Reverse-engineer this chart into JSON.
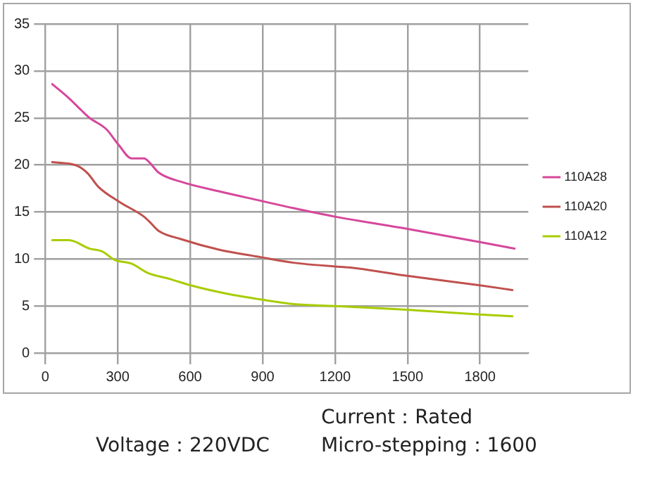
{
  "chart_data": {
    "type": "line",
    "xlim": [
      0,
      2000
    ],
    "xticks": [
      0,
      300,
      600,
      900,
      1200,
      1500,
      1800
    ],
    "ylim": [
      0,
      35
    ],
    "yticks": [
      0,
      5,
      10,
      15,
      20,
      25,
      30,
      35
    ],
    "grid": true,
    "legend": "right",
    "marker": "none",
    "line_style": "solid",
    "series": [
      {
        "name": "110A28",
        "color": "#d6479b",
        "x": [
          29,
          98,
          150,
          184,
          253,
          305,
          357,
          409,
          434,
          469,
          564,
          719,
          891,
          1029,
          1200,
          1500,
          1800,
          1943
        ],
        "values": [
          28.6,
          27.1,
          25.8,
          25.0,
          23.8,
          22.1,
          20.7,
          20.7,
          20.2,
          19.2,
          18.2,
          17.2,
          16.2,
          15.4,
          14.5,
          13.2,
          11.8,
          11.1
        ]
      },
      {
        "name": "110A20",
        "color": "#c0504d",
        "x": [
          29,
          133,
          176,
          219,
          305,
          409,
          434,
          469,
          564,
          719,
          891,
          1029,
          1200,
          1257,
          1500,
          1800,
          1934
        ],
        "values": [
          20.3,
          19.9,
          19.1,
          17.7,
          16.1,
          14.5,
          13.9,
          13.0,
          12.1,
          11.0,
          10.2,
          9.6,
          9.2,
          9.1,
          8.2,
          7.2,
          6.7
        ]
      },
      {
        "name": "110A12",
        "color": "#a8cc00",
        "x": [
          29,
          98,
          184,
          236,
          288,
          357,
          426,
          512,
          616,
          753,
          891,
          1029,
          1200,
          1500,
          1800,
          1934
        ],
        "values": [
          12.0,
          12.0,
          11.1,
          10.8,
          9.9,
          9.5,
          8.5,
          7.9,
          7.1,
          6.3,
          5.7,
          5.2,
          5.0,
          4.6,
          4.1,
          3.9
        ]
      }
    ],
    "annotations": [
      "Voltage：220VDC",
      "Current：Rated",
      "Micro-stepping：1600"
    ]
  }
}
